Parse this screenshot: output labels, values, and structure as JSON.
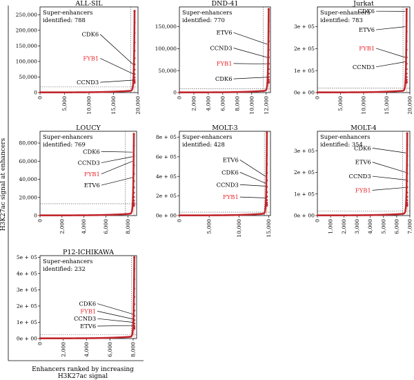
{
  "figure": {
    "ylabel": "H3K27ac signal at enhancers",
    "xlabel": "Enhancers ranked by increasing H3K27ac signal",
    "box_line1": "Super-enhancers",
    "box_line2_prefix": "identified:",
    "highlight_color": "#e8262b",
    "curve_color": "#c1272d"
  },
  "chart_data": [
    {
      "type": "scatter",
      "title": "ALL-SIL",
      "super_enhancers": 788,
      "n": 19300,
      "ymax": 262000,
      "xlim": [
        0,
        20000
      ],
      "ylim": [
        0,
        275000
      ],
      "xticks": [
        0,
        5000,
        10000,
        15000,
        20000
      ],
      "xtick_labels": [
        "0",
        "5,000",
        "10,000",
        "15,000",
        "20,000"
      ],
      "yticks": [
        0,
        50000,
        100000,
        150000,
        200000,
        250000
      ],
      "ytick_labels": [
        "0",
        "50,000",
        "100,000",
        "150,000",
        "200,000",
        "250,000"
      ],
      "cutoff_rank": 18512,
      "cutoff_signal": 18000,
      "annotations": [
        {
          "gene": "CDK6",
          "value": 90000,
          "highlight": false
        },
        {
          "gene": "FYB1",
          "value": 60000,
          "highlight": true
        },
        {
          "gene": "CCND3",
          "value": 40000,
          "highlight": false
        }
      ]
    },
    {
      "type": "scatter",
      "title": "DND-41",
      "super_enhancers": 770,
      "n": 12350,
      "ymax": 190000,
      "xlim": [
        0,
        12600
      ],
      "ylim": [
        0,
        195000
      ],
      "xticks": [
        0,
        2000,
        4000,
        6000,
        8000,
        10000,
        12000
      ],
      "xtick_labels": [
        "0",
        "2,000",
        "4,000",
        "6,000",
        "8,000",
        "10,000",
        "12,000"
      ],
      "yticks": [
        0,
        50000,
        100000,
        150000
      ],
      "ytick_labels": [
        "0",
        "50,000",
        "100,000",
        "150,000"
      ],
      "cutoff_rank": 11580,
      "cutoff_signal": 9000,
      "annotations": [
        {
          "gene": "ETV6",
          "value": 110000,
          "highlight": false
        },
        {
          "gene": "CCND3",
          "value": 80000,
          "highlight": false
        },
        {
          "gene": "FYB1",
          "value": 65000,
          "highlight": true
        },
        {
          "gene": "CDK6",
          "value": 35000,
          "highlight": false
        }
      ]
    },
    {
      "type": "scatter",
      "title": "Jurkat",
      "super_enhancers": 783,
      "n": 19300,
      "ymax": 380000,
      "xlim": [
        0,
        20000
      ],
      "ylim": [
        0,
        390000
      ],
      "xticks": [
        0,
        5000,
        10000,
        15000,
        20000
      ],
      "xtick_labels": [
        "0",
        "5,000",
        "10,000",
        "15,000",
        "20,000"
      ],
      "yticks": [
        0,
        100000,
        200000,
        300000
      ],
      "ytick_labels": [
        "0e + 00",
        "1e + 05",
        "2e + 05",
        "3e + 05"
      ],
      "cutoff_rank": 18517,
      "cutoff_signal": 20000,
      "annotations": [
        {
          "gene": "CDK6",
          "value": 370000,
          "highlight": false
        },
        {
          "gene": "ETV6",
          "value": 300000,
          "highlight": false
        },
        {
          "gene": "FYB1",
          "value": 160000,
          "highlight": true
        },
        {
          "gene": "CCND3",
          "value": 140000,
          "highlight": false
        }
      ]
    },
    {
      "type": "scatter",
      "title": "LOUCY",
      "super_enhancers": 769,
      "n": 8550,
      "ymax": 90000,
      "xlim": [
        0,
        8800
      ],
      "ylim": [
        0,
        93000
      ],
      "xticks": [
        0,
        2000,
        4000,
        6000,
        8000
      ],
      "xtick_labels": [
        "0",
        "2,000",
        "4,000",
        "6,000",
        "8,000"
      ],
      "yticks": [
        0,
        20000,
        40000,
        60000,
        80000
      ],
      "ytick_labels": [
        "0",
        "20,000",
        "40,000",
        "60,000",
        "80,000"
      ],
      "cutoff_rank": 7781,
      "cutoff_signal": 13000,
      "annotations": [
        {
          "gene": "CDK6",
          "value": 70000,
          "highlight": false
        },
        {
          "gene": "CCND3",
          "value": 65000,
          "highlight": false
        },
        {
          "gene": "FYB1",
          "value": 60000,
          "highlight": true
        },
        {
          "gene": "ETV6",
          "value": 42000,
          "highlight": false
        }
      ]
    },
    {
      "type": "scatter",
      "title": "MOLT-3",
      "super_enhancers": 428,
      "n": 14700,
      "ymax": 850000,
      "xlim": [
        0,
        15300
      ],
      "ylim": [
        0,
        860000
      ],
      "xticks": [
        0,
        5000,
        10000,
        15000
      ],
      "xtick_labels": [
        "0",
        "5,000",
        "10,000",
        "15,000"
      ],
      "yticks": [
        0,
        200000,
        400000,
        600000,
        800000
      ],
      "ytick_labels": [
        "0e + 00",
        "2e + 05",
        "4e + 05",
        "6e + 05",
        "8e + 05"
      ],
      "cutoff_rank": 14272,
      "cutoff_signal": 35000,
      "annotations": [
        {
          "gene": "ETV6",
          "value": 400000,
          "highlight": false
        },
        {
          "gene": "CDK6",
          "value": 330000,
          "highlight": false
        },
        {
          "gene": "CCND3",
          "value": 300000,
          "highlight": false
        },
        {
          "gene": "FYB1",
          "value": 180000,
          "highlight": true
        }
      ]
    },
    {
      "type": "scatter",
      "title": "MOLT-4",
      "super_enhancers": 354,
      "n": 6800,
      "ymax": 380000,
      "xlim": [
        0,
        7000
      ],
      "ylim": [
        0,
        390000
      ],
      "xticks": [
        0,
        1000,
        2000,
        3000,
        4000,
        5000,
        6000,
        7000
      ],
      "xtick_labels": [
        "0",
        "1,000",
        "2,000",
        "3,000",
        "4,000",
        "5,000",
        "6,000",
        "7,000"
      ],
      "yticks": [
        0,
        100000,
        200000,
        300000
      ],
      "ytick_labels": [
        "0e + 00",
        "1e + 05",
        "2e + 05",
        "3e + 05"
      ],
      "cutoff_rank": 6446,
      "cutoff_signal": 20000,
      "annotations": [
        {
          "gene": "CDK6",
          "value": 290000,
          "highlight": false
        },
        {
          "gene": "ETV6",
          "value": 200000,
          "highlight": false
        },
        {
          "gene": "CCND3",
          "value": 165000,
          "highlight": false
        },
        {
          "gene": "FYB1",
          "value": 130000,
          "highlight": true
        }
      ]
    },
    {
      "type": "scatter",
      "title": "P12-ICHIKAWA",
      "super_enhancers": 232,
      "n": 8100,
      "ymax": 500000,
      "xlim": [
        0,
        8300
      ],
      "ylim": [
        0,
        510000
      ],
      "xticks": [
        0,
        2000,
        4000,
        6000,
        8000
      ],
      "xtick_labels": [
        "0",
        "2,000",
        "4,000",
        "6,000",
        "8,000"
      ],
      "yticks": [
        0,
        100000,
        200000,
        300000,
        400000,
        500000
      ],
      "ytick_labels": [
        "0e + 00",
        "1e + 05",
        "2e + 05",
        "3e + 05",
        "4e + 05",
        "5e + 05"
      ],
      "cutoff_rank": 7868,
      "cutoff_signal": 25000,
      "annotations": [
        {
          "gene": "CDK6",
          "value": 150000,
          "highlight": false
        },
        {
          "gene": "FYB1",
          "value": 120000,
          "highlight": true
        },
        {
          "gene": "CCND3",
          "value": 100000,
          "highlight": false
        },
        {
          "gene": "ETV6",
          "value": 80000,
          "highlight": false
        }
      ]
    }
  ]
}
